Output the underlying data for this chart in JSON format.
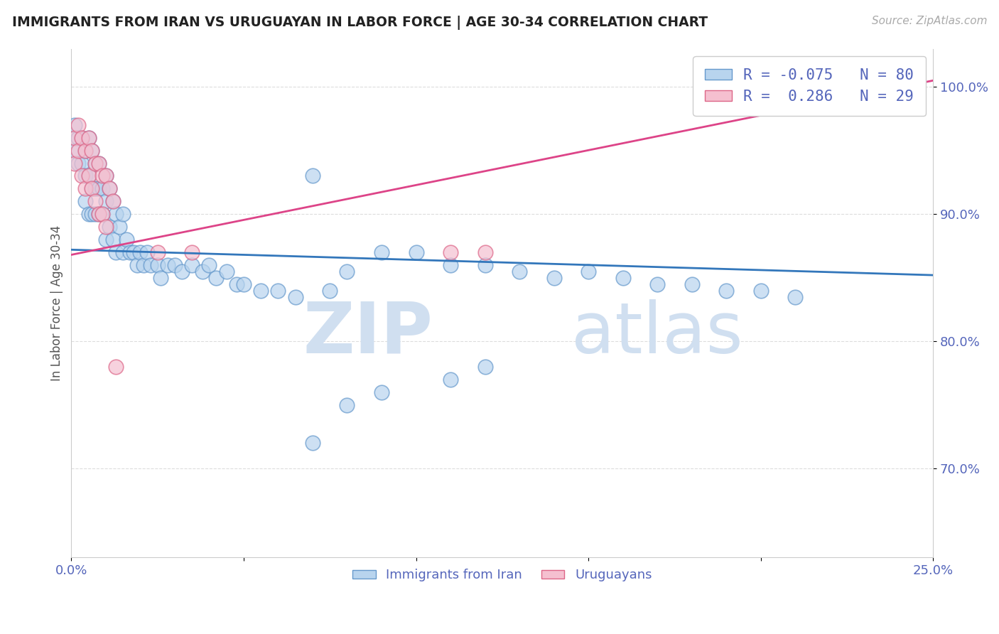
{
  "title": "IMMIGRANTS FROM IRAN VS URUGUAYAN IN LABOR FORCE | AGE 30-34 CORRELATION CHART",
  "source": "Source: ZipAtlas.com",
  "ylabel": "In Labor Force | Age 30-34",
  "xlim": [
    0.0,
    0.25
  ],
  "ylim": [
    0.63,
    1.03
  ],
  "xticks": [
    0.0,
    0.05,
    0.1,
    0.15,
    0.2,
    0.25
  ],
  "xticklabels": [
    "0.0%",
    "",
    "",
    "",
    "",
    "25.0%"
  ],
  "yticks": [
    0.7,
    0.8,
    0.9,
    1.0
  ],
  "yticklabels": [
    "70.0%",
    "80.0%",
    "90.0%",
    "100.0%"
  ],
  "blue_face": "#b8d4ee",
  "blue_edge": "#6699cc",
  "pink_face": "#f5c0d0",
  "pink_edge": "#dd6688",
  "blue_line_color": "#3377bb",
  "pink_line_color": "#dd4488",
  "R_blue": -0.075,
  "N_blue": 80,
  "R_pink": 0.286,
  "N_pink": 29,
  "legend_blue": "R = -0.075   N = 80",
  "legend_pink": "R =  0.286   N = 29",
  "legend_bot_blue": "Immigrants from Iran",
  "legend_bot_pink": "Uruguayans",
  "watermark_zip": "ZIP",
  "watermark_atlas": "atlas",
  "bg": "#ffffff",
  "grid_color": "#dddddd",
  "title_color": "#222222",
  "axis_label_color": "#5566bb",
  "blue_line_y0": 0.872,
  "blue_line_y1": 0.852,
  "pink_line_y0": 0.868,
  "pink_line_y1": 1.005,
  "blue_x": [
    0.001,
    0.001,
    0.002,
    0.002,
    0.003,
    0.003,
    0.004,
    0.004,
    0.004,
    0.005,
    0.005,
    0.005,
    0.006,
    0.006,
    0.006,
    0.007,
    0.007,
    0.007,
    0.008,
    0.008,
    0.008,
    0.009,
    0.009,
    0.01,
    0.01,
    0.01,
    0.011,
    0.011,
    0.012,
    0.012,
    0.013,
    0.013,
    0.014,
    0.015,
    0.015,
    0.016,
    0.017,
    0.018,
    0.019,
    0.02,
    0.021,
    0.022,
    0.023,
    0.025,
    0.026,
    0.028,
    0.03,
    0.032,
    0.035,
    0.038,
    0.04,
    0.042,
    0.045,
    0.048,
    0.05,
    0.055,
    0.06,
    0.065,
    0.07,
    0.075,
    0.08,
    0.09,
    0.1,
    0.11,
    0.12,
    0.13,
    0.14,
    0.15,
    0.16,
    0.17,
    0.18,
    0.19,
    0.2,
    0.21,
    0.11,
    0.12,
    0.09,
    0.08,
    0.07,
    0.22
  ],
  "blue_y": [
    0.95,
    0.97,
    0.96,
    0.94,
    0.96,
    0.94,
    0.95,
    0.93,
    0.91,
    0.96,
    0.93,
    0.9,
    0.95,
    0.92,
    0.9,
    0.94,
    0.92,
    0.9,
    0.94,
    0.92,
    0.9,
    0.92,
    0.9,
    0.93,
    0.91,
    0.88,
    0.92,
    0.89,
    0.91,
    0.88,
    0.9,
    0.87,
    0.89,
    0.9,
    0.87,
    0.88,
    0.87,
    0.87,
    0.86,
    0.87,
    0.86,
    0.87,
    0.86,
    0.86,
    0.85,
    0.86,
    0.86,
    0.855,
    0.86,
    0.855,
    0.86,
    0.85,
    0.855,
    0.845,
    0.845,
    0.84,
    0.84,
    0.835,
    0.93,
    0.84,
    0.855,
    0.87,
    0.87,
    0.86,
    0.86,
    0.855,
    0.85,
    0.855,
    0.85,
    0.845,
    0.845,
    0.84,
    0.84,
    0.835,
    0.77,
    0.78,
    0.76,
    0.75,
    0.72,
    0.99
  ],
  "pink_x": [
    0.001,
    0.001,
    0.002,
    0.002,
    0.003,
    0.003,
    0.004,
    0.004,
    0.005,
    0.005,
    0.006,
    0.006,
    0.007,
    0.007,
    0.008,
    0.008,
    0.009,
    0.009,
    0.01,
    0.01,
    0.011,
    0.012,
    0.013,
    0.025,
    0.035,
    0.11,
    0.12,
    0.21,
    0.22
  ],
  "pink_y": [
    0.96,
    0.94,
    0.97,
    0.95,
    0.96,
    0.93,
    0.95,
    0.92,
    0.96,
    0.93,
    0.95,
    0.92,
    0.94,
    0.91,
    0.94,
    0.9,
    0.93,
    0.9,
    0.93,
    0.89,
    0.92,
    0.91,
    0.78,
    0.87,
    0.87,
    0.87,
    0.87,
    0.99,
    0.99
  ]
}
